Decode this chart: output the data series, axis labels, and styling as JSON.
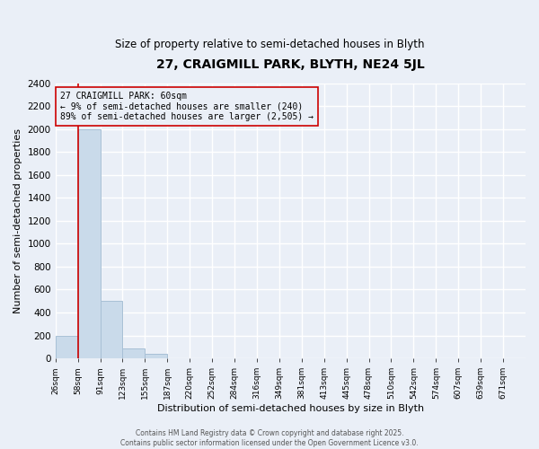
{
  "title1": "27, CRAIGMILL PARK, BLYTH, NE24 5JL",
  "title2": "Size of property relative to semi-detached houses in Blyth",
  "xlabel": "Distribution of semi-detached houses by size in Blyth",
  "ylabel": "Number of semi-detached properties",
  "bin_labels": [
    "26sqm",
    "58sqm",
    "91sqm",
    "123sqm",
    "155sqm",
    "187sqm",
    "220sqm",
    "252sqm",
    "284sqm",
    "316sqm",
    "349sqm",
    "381sqm",
    "413sqm",
    "445sqm",
    "478sqm",
    "510sqm",
    "542sqm",
    "574sqm",
    "607sqm",
    "639sqm",
    "671sqm"
  ],
  "bar_heights": [
    200,
    2000,
    500,
    90,
    40,
    0,
    0,
    0,
    0,
    0,
    0,
    0,
    0,
    0,
    0,
    0,
    0,
    0,
    0,
    0,
    0
  ],
  "bar_color": "#c9daea",
  "bar_edgecolor": "#a8c0d6",
  "property_bin_index": 1,
  "property_label": "27 CRAIGMILL PARK: 60sqm",
  "smaller_pct": "9%",
  "smaller_count": 240,
  "larger_pct": "89%",
  "larger_count": 2505,
  "vline_color": "#cc0000",
  "annotation_box_edgecolor": "#cc0000",
  "ylim_max": 2400,
  "yticks": [
    0,
    200,
    400,
    600,
    800,
    1000,
    1200,
    1400,
    1600,
    1800,
    2000,
    2200,
    2400
  ],
  "background_color": "#eaeff7",
  "grid_color": "#ffffff",
  "footer_line1": "Contains HM Land Registry data © Crown copyright and database right 2025.",
  "footer_line2": "Contains public sector information licensed under the Open Government Licence v3.0."
}
